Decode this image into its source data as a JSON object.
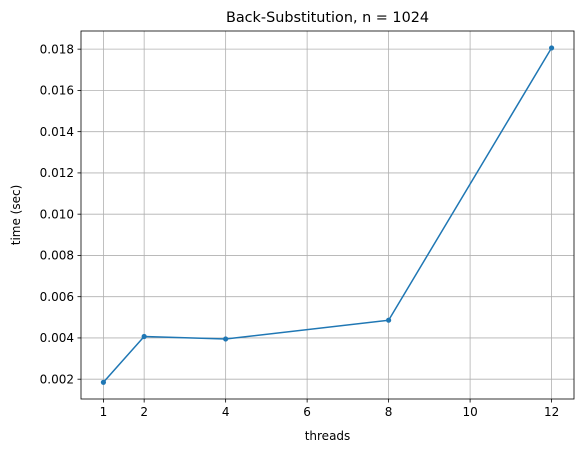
{
  "chart_data": {
    "type": "line",
    "title": "Back-Substitution, n = 1024",
    "xlabel": "threads",
    "ylabel": "time (sec)",
    "x": [
      1,
      2,
      4,
      8,
      12
    ],
    "series": [
      {
        "name": "",
        "color": "#1f77b4",
        "marker": "circle",
        "values": [
          0.00185,
          0.00407,
          0.00395,
          0.00486,
          0.01806
        ]
      }
    ],
    "xticks": [
      1,
      2,
      4,
      6,
      8,
      10,
      12
    ],
    "xtick_labels": [
      "1",
      "2",
      "4",
      "6",
      "8",
      "10",
      "12"
    ],
    "yticks": [
      0.002,
      0.004,
      0.006,
      0.008,
      0.01,
      0.012,
      0.014,
      0.016,
      0.018
    ],
    "ytick_labels": [
      "0.002",
      "0.004",
      "0.006",
      "0.008",
      "0.010",
      "0.012",
      "0.014",
      "0.016",
      "0.018"
    ],
    "xlim": [
      0.45,
      12.55
    ],
    "ylim": [
      0.00104,
      0.01888
    ],
    "grid": true,
    "legend": false
  }
}
